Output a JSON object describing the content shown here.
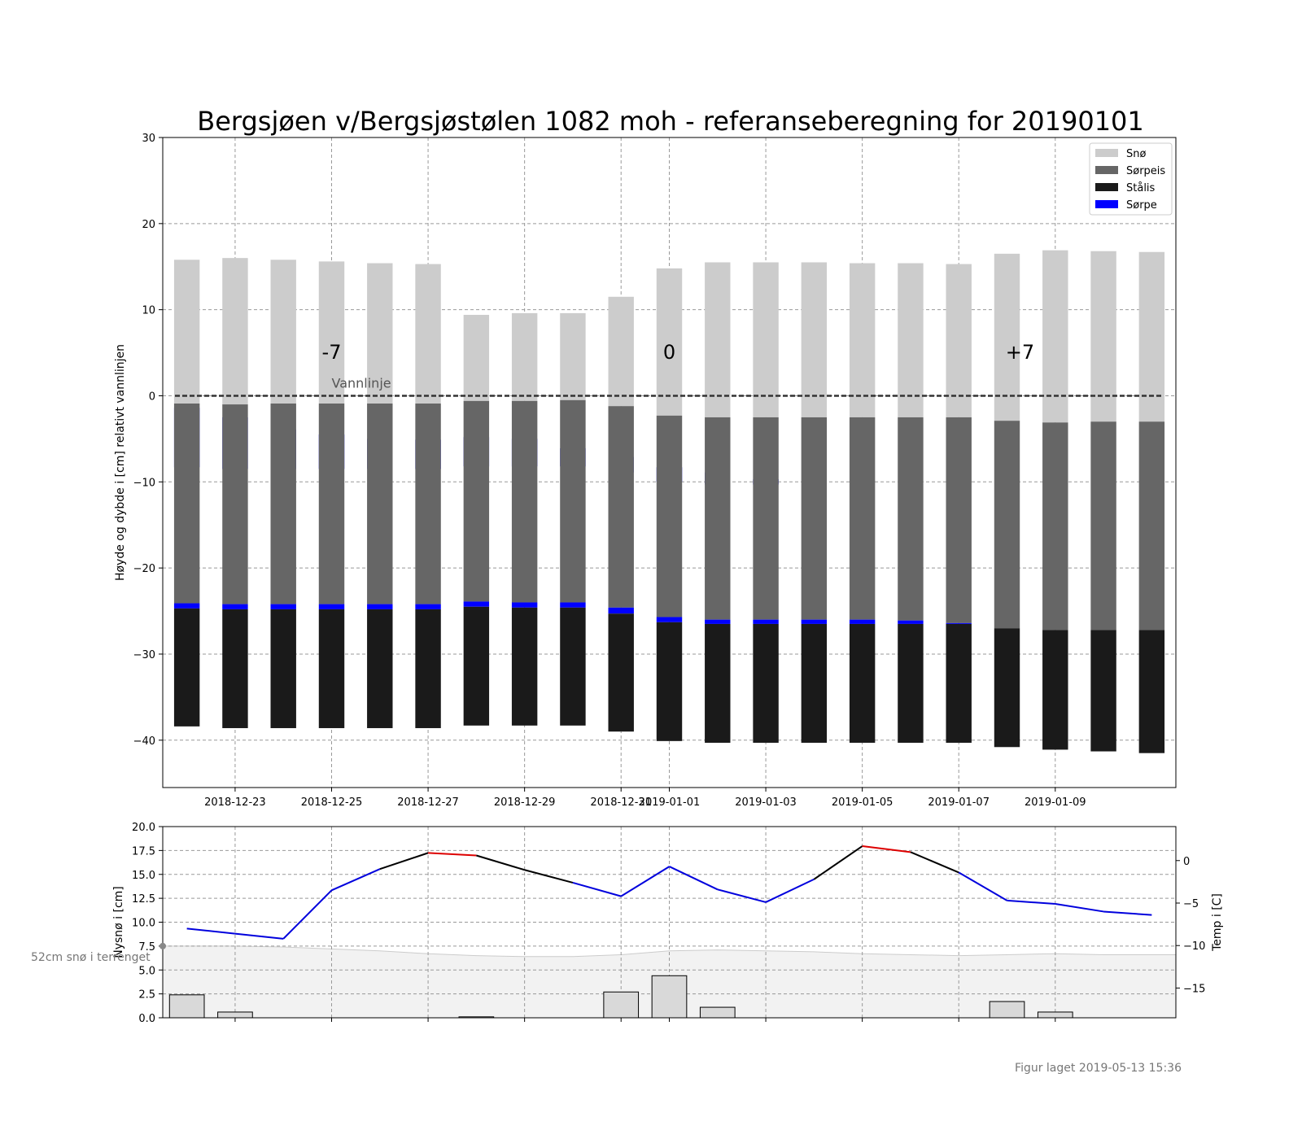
{
  "title": "Bergsjøen v/Bergsjøstølen 1082 moh - referanseberegning for 20190101",
  "footer": "Figur laget 2019-05-13 15:36",
  "colors": {
    "snow": "#cccccc",
    "slush_ice": "#666666",
    "black_ice": "#1a1a1a",
    "slush": "#0000ff",
    "temp_line": "#0000dd",
    "temp_warm": "#dd0000",
    "temp_mid": "#000000",
    "terrain_fill": "#f2f2f2",
    "newsnow_bar": "#d9d9d9"
  },
  "chart_data": [
    {
      "type": "bar",
      "stacked": true,
      "ylabel": "Høyde og dybde i [cm] relativt vannlinjen",
      "ylim": [
        -45.5,
        30
      ],
      "yticks": [
        30,
        20,
        10,
        0,
        -10,
        -20,
        -30,
        -40
      ],
      "xticks": [
        "2018-12-23",
        "2018-12-25",
        "2018-12-27",
        "2018-12-29",
        "2018-12-31",
        "2019-01-01",
        "2019-01-03",
        "2019-01-05",
        "2019-01-07",
        "2019-01-09"
      ],
      "xlim": [
        "2018-12-21 12:00",
        "2019-01-11 12:00"
      ],
      "grid": true,
      "legend_position": "top-right",
      "legend": [
        "Snø",
        "Sørpeis",
        "Stålis",
        "Sørpe"
      ],
      "waterline_label": "Vannlinje",
      "markers": [
        {
          "label": "-7",
          "date": "2018-12-25"
        },
        {
          "label": "0",
          "date": "2019-01-01"
        },
        {
          "label": "+7",
          "date": "2019-01-08"
        }
      ],
      "dates": [
        "2018-12-22",
        "2018-12-23",
        "2018-12-24",
        "2018-12-25",
        "2018-12-26",
        "2018-12-27",
        "2018-12-28",
        "2018-12-29",
        "2018-12-30",
        "2018-12-31",
        "2019-01-01",
        "2019-01-02",
        "2019-01-03",
        "2019-01-04",
        "2019-01-05",
        "2019-01-06",
        "2019-01-07",
        "2019-01-08",
        "2019-01-09",
        "2019-01-10",
        "2019-01-11"
      ],
      "layers": [
        {
          "name": "Snø",
          "color_key": "snow",
          "stack": [
            [
              -0.9,
              15.8
            ],
            [
              -1.0,
              16.0
            ],
            [
              -0.9,
              15.8
            ],
            [
              -0.9,
              15.6
            ],
            [
              -0.9,
              15.4
            ],
            [
              -0.9,
              15.3
            ],
            [
              -0.6,
              9.4
            ],
            [
              -0.6,
              9.6
            ],
            [
              -0.5,
              9.6
            ],
            [
              -1.2,
              11.5
            ],
            [
              -2.3,
              14.8
            ],
            [
              -2.5,
              15.5
            ],
            [
              -2.5,
              15.5
            ],
            [
              -2.5,
              15.5
            ],
            [
              -2.5,
              15.4
            ],
            [
              -2.5,
              15.4
            ],
            [
              -2.5,
              15.3
            ],
            [
              -2.9,
              16.5
            ],
            [
              -3.1,
              16.9
            ],
            [
              -3.0,
              16.8
            ],
            [
              -3.0,
              16.7
            ]
          ]
        },
        {
          "name": "Sørpe (øvre)",
          "color_key": "slush",
          "stack": [
            [
              -8.3,
              -1.4
            ],
            [
              -8.5,
              -2.5
            ],
            [
              -8.5,
              -3.9
            ],
            [
              -8.5,
              -4.5
            ],
            [
              -8.5,
              -5.0
            ],
            [
              -8.5,
              -5.1
            ],
            [
              -8.2,
              -4.8
            ],
            [
              -8.2,
              -5.0
            ],
            [
              -8.2,
              -6.1
            ],
            [
              -8.9,
              -7.1
            ],
            [
              -10.0,
              -8.3
            ],
            [
              -10.3,
              -8.9
            ],
            [
              -10.3,
              -9.7
            ],
            [
              -10.3,
              -10.3
            ],
            [
              -10.3,
              -10.3
            ],
            [
              -10.3,
              -10.3
            ],
            [
              -10.3,
              -10.3
            ],
            [
              -10.3,
              -10.3
            ],
            [
              -10.3,
              -10.3
            ],
            [
              -10.3,
              -10.3
            ],
            [
              -10.3,
              -10.3
            ]
          ]
        },
        {
          "name": "Sørpeis",
          "color_key": "slush_ice",
          "stack": [
            [
              -24.1,
              -0.9
            ],
            [
              -24.2,
              -1.0
            ],
            [
              -24.2,
              -0.9
            ],
            [
              -24.2,
              -0.9
            ],
            [
              -24.2,
              -0.9
            ],
            [
              -24.2,
              -0.9
            ],
            [
              -23.9,
              -0.6
            ],
            [
              -24.0,
              -0.6
            ],
            [
              -24.0,
              -0.5
            ],
            [
              -24.6,
              -1.2
            ],
            [
              -25.7,
              -2.3
            ],
            [
              -26.0,
              -2.5
            ],
            [
              -26.0,
              -2.5
            ],
            [
              -26.0,
              -2.5
            ],
            [
              -26.0,
              -2.5
            ],
            [
              -26.1,
              -2.5
            ],
            [
              -26.4,
              -2.5
            ],
            [
              -27.0,
              -2.9
            ],
            [
              -27.2,
              -3.1
            ],
            [
              -27.2,
              -3.0
            ],
            [
              -27.2,
              -3.0
            ]
          ]
        },
        {
          "name": "Sørpe (nedre)",
          "color_key": "slush",
          "stack": [
            [
              -24.7,
              -24.1
            ],
            [
              -24.8,
              -24.2
            ],
            [
              -24.8,
              -24.2
            ],
            [
              -24.8,
              -24.2
            ],
            [
              -24.8,
              -24.2
            ],
            [
              -24.8,
              -24.2
            ],
            [
              -24.5,
              -23.9
            ],
            [
              -24.6,
              -24.0
            ],
            [
              -24.6,
              -24.0
            ],
            [
              -25.3,
              -24.6
            ],
            [
              -26.3,
              -25.7
            ],
            [
              -26.5,
              -26.0
            ],
            [
              -26.5,
              -26.0
            ],
            [
              -26.5,
              -26.0
            ],
            [
              -26.5,
              -26.0
            ],
            [
              -26.5,
              -26.1
            ],
            [
              -26.5,
              -26.4
            ],
            [
              -27.0,
              -27.0
            ],
            [
              -27.2,
              -27.2
            ],
            [
              -27.2,
              -27.2
            ],
            [
              -27.2,
              -27.2
            ]
          ]
        },
        {
          "name": "Stålis",
          "color_key": "black_ice",
          "stack": [
            [
              -38.4,
              -24.7
            ],
            [
              -38.6,
              -24.8
            ],
            [
              -38.6,
              -24.8
            ],
            [
              -38.6,
              -24.8
            ],
            [
              -38.6,
              -24.8
            ],
            [
              -38.6,
              -24.8
            ],
            [
              -38.3,
              -24.5
            ],
            [
              -38.3,
              -24.6
            ],
            [
              -38.3,
              -24.6
            ],
            [
              -39.0,
              -25.3
            ],
            [
              -40.1,
              -26.3
            ],
            [
              -40.3,
              -26.5
            ],
            [
              -40.3,
              -26.5
            ],
            [
              -40.3,
              -26.5
            ],
            [
              -40.3,
              -26.5
            ],
            [
              -40.3,
              -26.5
            ],
            [
              -40.3,
              -26.5
            ],
            [
              -40.8,
              -27.0
            ],
            [
              -41.1,
              -27.2
            ],
            [
              -41.3,
              -27.2
            ],
            [
              -41.5,
              -27.2
            ]
          ]
        }
      ]
    },
    {
      "type": "bar",
      "ylabel": "Nysnø i [cm]",
      "ylim": [
        0,
        20
      ],
      "yticks": [
        "0.0",
        "2.5",
        "5.0",
        "7.5",
        "10.0",
        "12.5",
        "15.0",
        "17.5",
        "20.0"
      ],
      "terrain_label": "52cm snø i terrenget",
      "new_snow": [
        {
          "date": "2018-12-22",
          "value": 2.4
        },
        {
          "date": "2018-12-23",
          "value": 0.6
        },
        {
          "date": "2018-12-28",
          "value": 0.1
        },
        {
          "date": "2018-12-31",
          "value": 2.7
        },
        {
          "date": "2019-01-01",
          "value": 4.4
        },
        {
          "date": "2019-01-02",
          "value": 1.1
        },
        {
          "date": "2019-01-08",
          "value": 1.7
        },
        {
          "date": "2019-01-09",
          "value": 0.6
        }
      ],
      "terrain": [
        7.5,
        7.5,
        7.4,
        7.2,
        7.0,
        6.7,
        6.5,
        6.4,
        6.4,
        6.6,
        7.0,
        7.1,
        7.0,
        6.9,
        6.7,
        6.6,
        6.5,
        6.6,
        6.7,
        6.6,
        6.6
      ]
    },
    {
      "type": "line",
      "ylabel": "Temp i [C]",
      "ylim": [
        -18.5,
        4
      ],
      "yticks": [
        0,
        -5,
        -10,
        -15
      ],
      "series": [
        {
          "x": [
            "2018-12-22",
            "2018-12-23",
            "2018-12-24",
            "2018-12-25",
            "2018-12-26",
            "2018-12-27",
            "2018-12-28",
            "2018-12-29",
            "2018-12-30",
            "2018-12-31",
            "2019-01-01",
            "2019-01-02",
            "2019-01-03",
            "2019-01-04",
            "2019-01-05",
            "2019-01-06",
            "2019-01-07",
            "2019-01-08",
            "2019-01-09",
            "2019-01-10",
            "2019-01-11"
          ],
          "values": [
            -8.0,
            -8.6,
            -9.2,
            -3.5,
            -1.0,
            0.9,
            0.6,
            -1.1,
            -2.6,
            -4.2,
            -0.7,
            -3.4,
            -4.9,
            -2.2,
            1.7,
            1.0,
            -1.4,
            -4.7,
            -5.1,
            -6.0,
            -6.4
          ]
        }
      ]
    }
  ]
}
